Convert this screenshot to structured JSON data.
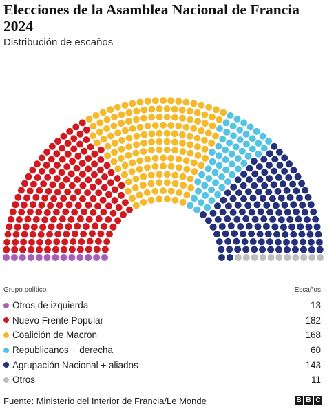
{
  "title": "Elecciones de la Asamblea Nacional de Francia 2024",
  "subtitle": "Distribución de escaños",
  "table": {
    "header_group": "Grupo político",
    "header_seats": "Escaños"
  },
  "chart_data": {
    "type": "parliament",
    "title": "Elecciones de la Asamblea Nacional de Francia 2024",
    "subtitle": "Distribución de escaños",
    "total_seats": 577,
    "series": [
      {
        "name": "Otros de izquierda",
        "value": 13,
        "color": "#a75dba"
      },
      {
        "name": "Nuevo Frente Popular",
        "value": 182,
        "color": "#d01a1f"
      },
      {
        "name": "Coalición de Macron",
        "value": 168,
        "color": "#f5b92c"
      },
      {
        "name": "Republicanos + derecha",
        "value": 60,
        "color": "#55c3e4"
      },
      {
        "name": "Agrupación Nacional + aliados",
        "value": 143,
        "color": "#25307b"
      },
      {
        "name": "Otros",
        "value": 11,
        "color": "#bdbdbd"
      }
    ]
  },
  "source": "Fuente: Ministerio del Interior de Francia/Le Monde",
  "logo": [
    "B",
    "B",
    "C"
  ]
}
